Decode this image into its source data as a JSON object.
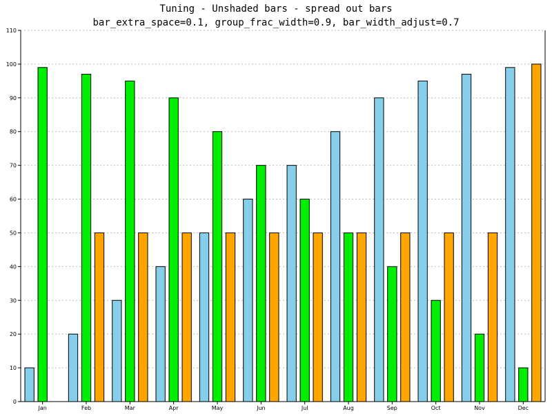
{
  "chart_data": {
    "type": "bar",
    "title": "Tuning - Unshaded bars - spread out bars",
    "subtitle": "bar_extra_space=0.1, group_frac_width=0.9, bar_width_adjust=0.7",
    "categories": [
      "Jan",
      "Feb",
      "Mar",
      "Apr",
      "May",
      "Jun",
      "Jul",
      "Aug",
      "Sep",
      "Oct",
      "Nov",
      "Dec"
    ],
    "series": [
      {
        "color": "#87ceeb",
        "values": [
          10,
          20,
          30,
          40,
          50,
          60,
          70,
          80,
          90,
          95,
          97,
          99
        ]
      },
      {
        "color": "#00ee00",
        "values": [
          99,
          97,
          95,
          90,
          80,
          70,
          60,
          50,
          40,
          30,
          20,
          10
        ]
      },
      {
        "color": "#ffa500",
        "values": [
          0,
          50,
          50,
          50,
          50,
          50,
          50,
          50,
          50,
          50,
          50,
          100
        ]
      }
    ],
    "ylim": [
      0,
      110
    ],
    "yticks": [
      0,
      10,
      20,
      30,
      40,
      50,
      60,
      70,
      80,
      90,
      100,
      110
    ],
    "grid": true,
    "xlabel": "",
    "ylabel": ""
  }
}
